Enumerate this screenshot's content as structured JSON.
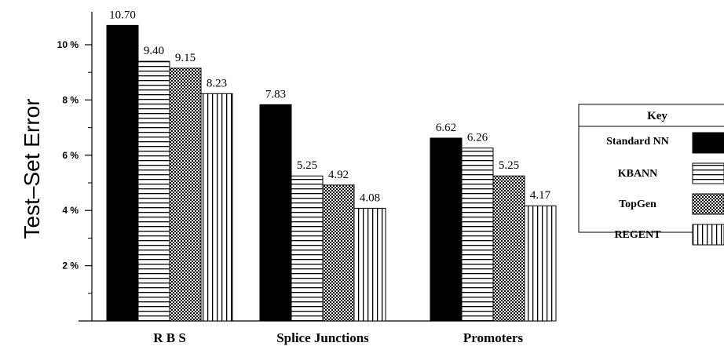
{
  "chart_data": {
    "type": "bar",
    "ylabel": "Test–Set Error",
    "yticks": [
      "2 %",
      "4 %",
      "6 %",
      "8 %",
      "10 %"
    ],
    "ylim": [
      0,
      11.1
    ],
    "categories": [
      "R B S",
      "Splice Junctions",
      "Promoters"
    ],
    "series": [
      {
        "name": "Standard NN",
        "pattern": "solid",
        "values": [
          10.7,
          7.83,
          6.62
        ],
        "labels": [
          "10.70",
          "7.83",
          "6.62"
        ]
      },
      {
        "name": "KBANN",
        "pattern": "hstripes",
        "values": [
          9.4,
          5.25,
          6.26
        ],
        "labels": [
          "9.40",
          "5.25",
          "6.26"
        ]
      },
      {
        "name": "TopGen",
        "pattern": "checker",
        "values": [
          9.15,
          4.92,
          5.25
        ],
        "labels": [
          "9.15",
          "4.92",
          "5.25"
        ]
      },
      {
        "name": "REGENT",
        "pattern": "vstripes",
        "values": [
          8.23,
          4.08,
          4.17
        ],
        "labels": [
          "8.23",
          "4.08",
          "4.17"
        ]
      }
    ],
    "legend": {
      "title": "Key",
      "placement": "right"
    },
    "grid": false
  }
}
